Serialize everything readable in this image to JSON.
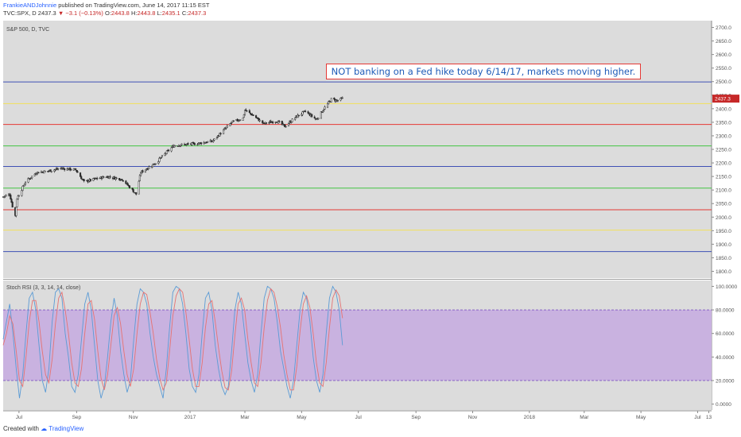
{
  "header": {
    "author": "FrankieANDJohnnie",
    "published": "published on TradingView.com, June 14, 2017 11:15 EST",
    "symbol": "TVC:SPX, D",
    "last": "2437.3",
    "change_arrow": "▼",
    "change": "−3.1 (−0.13%)",
    "o_label": "O:",
    "o": "2443.8",
    "h_label": "H:",
    "h": "2443.8",
    "l_label": "L:",
    "l": "2435.1",
    "c_label": "C:",
    "c": "2437.3"
  },
  "footer": {
    "created_with": "Created with",
    "brand": "TradingView"
  },
  "colors": {
    "plot_bg": "#dcdcdc",
    "rsi_band": "#c9b2e0",
    "candle": "#2b2b2b",
    "blue_line": "#3f51b5",
    "yellow_line": "#f2e05a",
    "red_line": "#e53935",
    "green_line": "#43c443",
    "stoch_k": "#5b9bd5",
    "stoch_d": "#e57373",
    "price_tag": "#c62828"
  },
  "chart_data": [
    {
      "type": "candlestick",
      "label": "S&P 500, D, TVC",
      "price_tag": "2437.3",
      "ylim": [
        1775,
        2725
      ],
      "yticks": [
        1800,
        1850,
        1900,
        1950,
        2000,
        2050,
        2100,
        2150,
        2200,
        2250,
        2300,
        2350,
        2400,
        2450,
        2500,
        2550,
        2600,
        2650,
        2700
      ],
      "ytick_labels": [
        "1800.0",
        "1850.0",
        "1900.0",
        "1950.0",
        "2000.0",
        "2050.0",
        "2100.0",
        "2150.0",
        "2200.0",
        "2250.0",
        "2300.0",
        "2350.0",
        "2400.0",
        "2450.0",
        "2500.0",
        "2550.0",
        "2600.0",
        "2650.0",
        "2700.0"
      ],
      "xticks": [
        "Jul",
        "Sep",
        "Nov",
        "2017",
        "Mar",
        "May",
        "Jul",
        "Sep",
        "Nov",
        "2018",
        "Mar",
        "May",
        "Jul",
        "13"
      ],
      "x_range": [
        "2016-06-14",
        "2018-07-16"
      ],
      "xtick_dates": [
        "2016-07-01",
        "2016-09-01",
        "2016-11-01",
        "2017-01-01",
        "2017-03-01",
        "2017-05-01",
        "2017-07-01",
        "2017-09-01",
        "2017-11-01",
        "2018-01-01",
        "2018-03-01",
        "2018-05-01",
        "2018-07-01",
        "2018-07-13"
      ],
      "path_dates": [
        "2016-06-14",
        "2016-06-21",
        "2016-06-24",
        "2016-06-27",
        "2016-06-29",
        "2016-07-08",
        "2016-07-20",
        "2016-08-01",
        "2016-08-15",
        "2016-08-31",
        "2016-09-09",
        "2016-09-20",
        "2016-10-03",
        "2016-10-20",
        "2016-11-04",
        "2016-11-09",
        "2016-11-25",
        "2016-12-07",
        "2016-12-15",
        "2017-01-05",
        "2017-01-25",
        "2017-02-15",
        "2017-02-27",
        "2017-03-01",
        "2017-03-10",
        "2017-03-21",
        "2017-04-04",
        "2017-04-13",
        "2017-04-25",
        "2017-05-05",
        "2017-05-17",
        "2017-05-25",
        "2017-06-02",
        "2017-06-08",
        "2017-06-14"
      ],
      "path_closes": [
        2075,
        2085,
        2040,
        2005,
        2070,
        2130,
        2165,
        2170,
        2180,
        2175,
        2130,
        2140,
        2150,
        2140,
        2085,
        2165,
        2200,
        2240,
        2265,
        2270,
        2280,
        2350,
        2365,
        2395,
        2375,
        2345,
        2355,
        2335,
        2370,
        2390,
        2360,
        2400,
        2435,
        2430,
        2437.3
      ],
      "horizontal_levels": [
        {
          "value": 2499,
          "color": "blue"
        },
        {
          "value": 2419,
          "color": "yellow"
        },
        {
          "value": 2342,
          "color": "red"
        },
        {
          "value": 2263,
          "color": "green"
        },
        {
          "value": 2187,
          "color": "blue"
        },
        {
          "value": 2107,
          "color": "green"
        },
        {
          "value": 2027,
          "color": "red"
        },
        {
          "value": 1952,
          "color": "yellow"
        },
        {
          "value": 1873,
          "color": "blue"
        }
      ],
      "annotation": "NOT banking on a Fed hike today 6/14/17, markets moving higher."
    },
    {
      "type": "line",
      "label": "Stoch RSI (3, 3, 14, 14, close)",
      "ylim": [
        -5,
        105
      ],
      "yticks": [
        0,
        20,
        40,
        60,
        80,
        100
      ],
      "ytick_labels": [
        "0.0000",
        "20.0000",
        "40.0000",
        "60.0000",
        "80.0000",
        "100.0000"
      ],
      "band": [
        20,
        80
      ],
      "series": [
        {
          "values": [
            55,
            70,
            85,
            60,
            30,
            5,
            25,
            60,
            90,
            95,
            80,
            50,
            20,
            10,
            30,
            70,
            95,
            98,
            90,
            60,
            40,
            15,
            10,
            25,
            55,
            85,
            95,
            80,
            50,
            20,
            5,
            15,
            40,
            70,
            90,
            75,
            45,
            25,
            10,
            20,
            55,
            85,
            98,
            95,
            85,
            60,
            40,
            25,
            15,
            5,
            30,
            65,
            95,
            100,
            98,
            85,
            60,
            30,
            15,
            10,
            25,
            60,
            90,
            95,
            80,
            50,
            30,
            15,
            8,
            15,
            45,
            80,
            95,
            85,
            60,
            35,
            20,
            10,
            25,
            60,
            90,
            100,
            98,
            90,
            70,
            45,
            30,
            15,
            5,
            20,
            50,
            80,
            95,
            90,
            70,
            40,
            20,
            10,
            25,
            60,
            90,
            100,
            95,
            80,
            50
          ]
        },
        {
          "values": [
            50,
            60,
            75,
            68,
            45,
            20,
            15,
            40,
            70,
            88,
            88,
            70,
            45,
            25,
            18,
            38,
            68,
            90,
            95,
            80,
            60,
            35,
            18,
            15,
            30,
            60,
            85,
            88,
            72,
            45,
            22,
            12,
            25,
            50,
            75,
            82,
            68,
            45,
            25,
            15,
            30,
            60,
            85,
            95,
            93,
            78,
            60,
            38,
            22,
            12,
            18,
            45,
            75,
            92,
            98,
            95,
            78,
            55,
            30,
            15,
            15,
            35,
            65,
            85,
            88,
            70,
            48,
            28,
            14,
            12,
            28,
            58,
            85,
            90,
            80,
            55,
            35,
            18,
            15,
            35,
            65,
            88,
            98,
            95,
            83,
            65,
            42,
            25,
            12,
            12,
            32,
            62,
            85,
            92,
            82,
            60,
            35,
            18,
            15,
            35,
            65,
            90,
            97,
            92,
            73
          ]
        }
      ]
    }
  ]
}
